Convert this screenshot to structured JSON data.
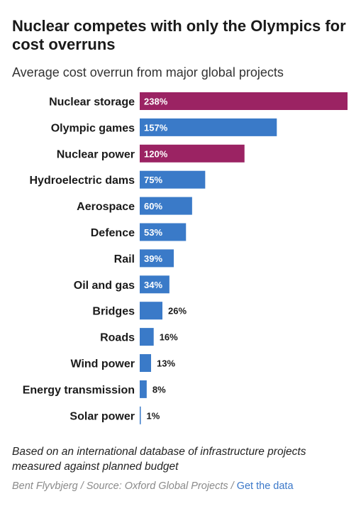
{
  "title": "Nuclear competes with only the Olympics for cost overruns",
  "subtitle": "Average cost overrun from major global projects",
  "chart_data": {
    "type": "bar",
    "orientation": "horizontal",
    "categories": [
      "Nuclear storage",
      "Olympic games",
      "Nuclear power",
      "Hydroelectric dams",
      "Aerospace",
      "Defence",
      "Rail",
      "Oil and gas",
      "Bridges",
      "Roads",
      "Wind power",
      "Energy transmission",
      "Solar power"
    ],
    "values": [
      238,
      157,
      120,
      75,
      60,
      53,
      39,
      34,
      26,
      16,
      13,
      8,
      1
    ],
    "value_labels": [
      "238%",
      "157%",
      "120%",
      "75%",
      "60%",
      "53%",
      "39%",
      "34%",
      "26%",
      "16%",
      "13%",
      "8%",
      "1%"
    ],
    "unit": "%",
    "xlim": [
      0,
      238
    ],
    "grid": false,
    "colors": {
      "nuclear": "#9b2363",
      "other": "#3a7ac8"
    },
    "highlight_categories": [
      "Nuclear storage",
      "Nuclear power"
    ]
  },
  "note": "Based on an international database of infrastructure projects measured against planned budget",
  "source": {
    "text": "Bent Flyvbjerg / Source: Oxford Global Projects / ",
    "link_label": "Get the data"
  }
}
